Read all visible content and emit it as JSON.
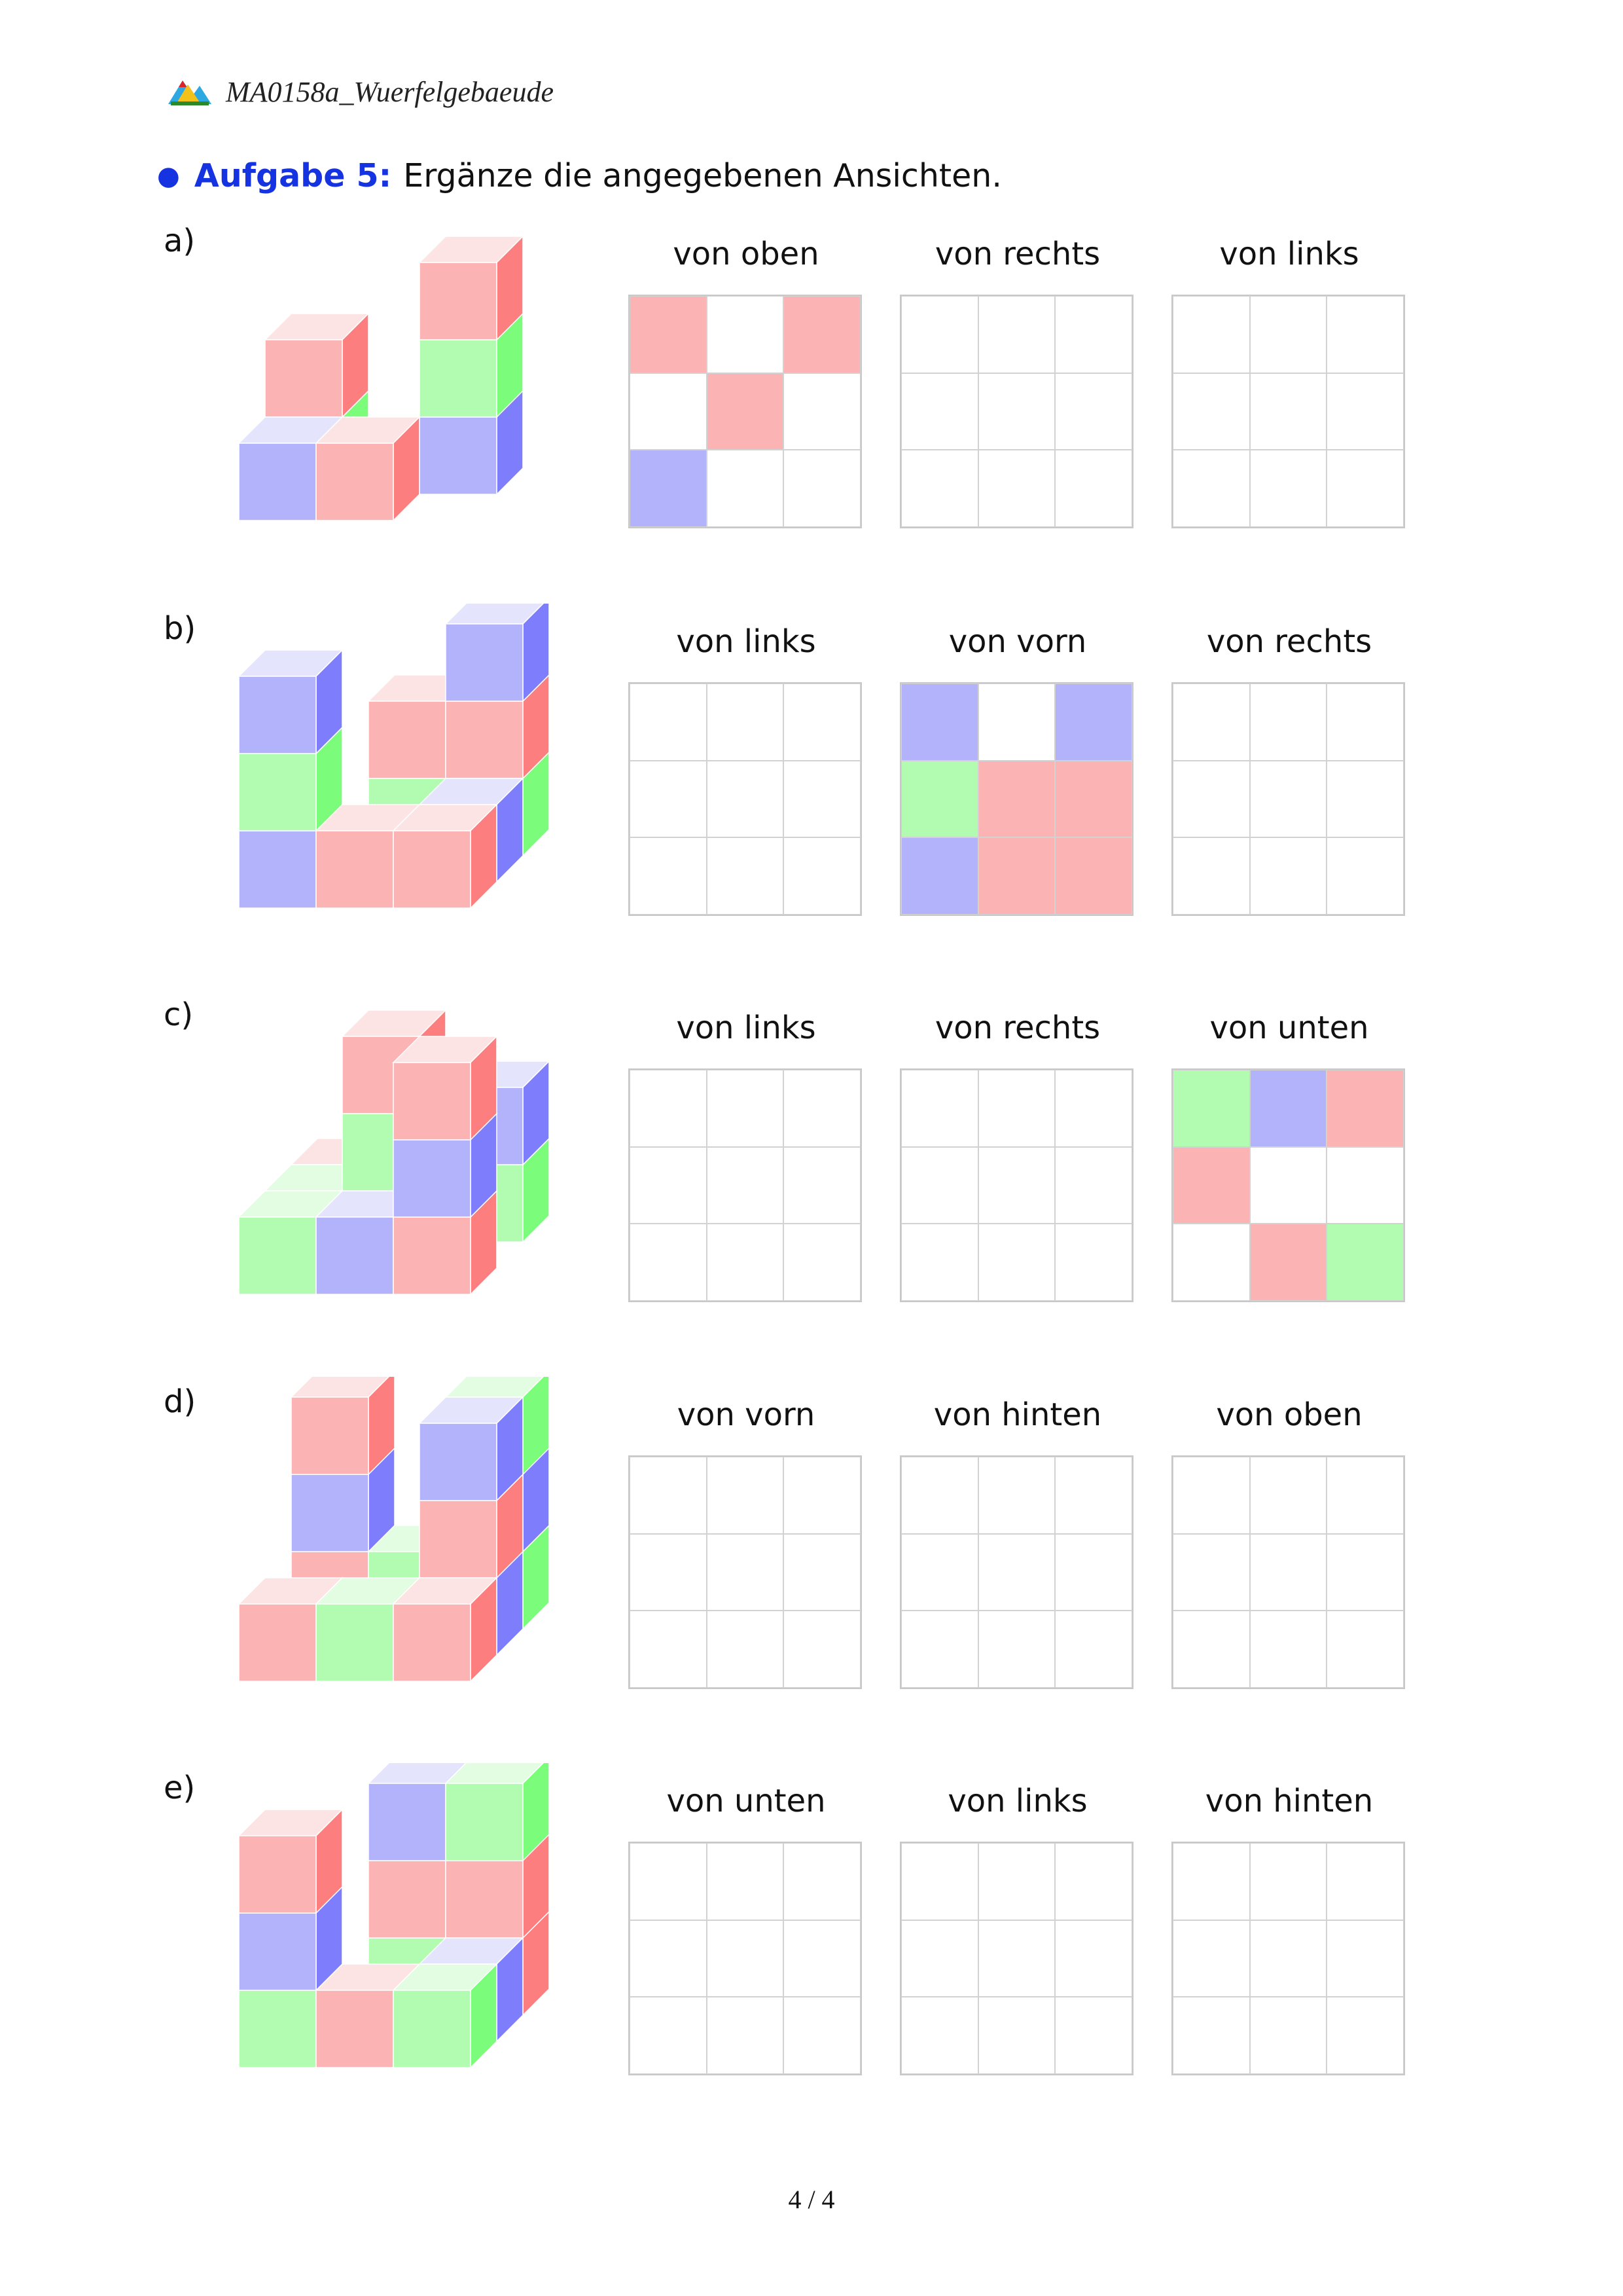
{
  "header": {
    "title": "MA0158a_Wuerfelgebaeude",
    "logo_icon": "mountain-logo-icon"
  },
  "task": {
    "bullet": "●",
    "label": "Aufgabe 5:",
    "text": "Ergänze die angegebenen Ansichten."
  },
  "colors": {
    "R": "#fcb3b3",
    "G": "#b1fcb1",
    "B": "#b3b3fc",
    "empty": "#ffffff"
  },
  "rows": [
    {
      "label": "a)",
      "views": [
        {
          "caption": "von oben",
          "cells": [
            "R",
            "",
            "R",
            "",
            "R",
            "",
            "B",
            "",
            ""
          ]
        },
        {
          "caption": "von rechts",
          "cells": [
            "",
            "",
            "",
            "",
            "",
            "",
            "",
            "",
            ""
          ]
        },
        {
          "caption": "von links",
          "cells": [
            "",
            "",
            "",
            "",
            "",
            "",
            "",
            "",
            ""
          ]
        }
      ]
    },
    {
      "label": "b)",
      "views": [
        {
          "caption": "von links",
          "cells": [
            "",
            "",
            "",
            "",
            "",
            "",
            "",
            "",
            ""
          ]
        },
        {
          "caption": "von vorn",
          "cells": [
            "B",
            "",
            "B",
            "G",
            "R",
            "R",
            "B",
            "R",
            "R"
          ]
        },
        {
          "caption": "von rechts",
          "cells": [
            "",
            "",
            "",
            "",
            "",
            "",
            "",
            "",
            ""
          ]
        }
      ]
    },
    {
      "label": "c)",
      "views": [
        {
          "caption": "von links",
          "cells": [
            "",
            "",
            "",
            "",
            "",
            "",
            "",
            "",
            ""
          ]
        },
        {
          "caption": "von rechts",
          "cells": [
            "",
            "",
            "",
            "",
            "",
            "",
            "",
            "",
            ""
          ]
        },
        {
          "caption": "von unten",
          "cells": [
            "G",
            "B",
            "R",
            "R",
            "",
            "",
            "",
            "R",
            "G"
          ]
        }
      ]
    },
    {
      "label": "d)",
      "views": [
        {
          "caption": "von vorn",
          "cells": [
            "",
            "",
            "",
            "",
            "",
            "",
            "",
            "",
            ""
          ]
        },
        {
          "caption": "von hinten",
          "cells": [
            "",
            "",
            "",
            "",
            "",
            "",
            "",
            "",
            ""
          ]
        },
        {
          "caption": "von oben",
          "cells": [
            "",
            "",
            "",
            "",
            "",
            "",
            "",
            "",
            ""
          ]
        }
      ]
    },
    {
      "label": "e)",
      "views": [
        {
          "caption": "von unten",
          "cells": [
            "",
            "",
            "",
            "",
            "",
            "",
            "",
            "",
            ""
          ]
        },
        {
          "caption": "von links",
          "cells": [
            "",
            "",
            "",
            "",
            "",
            "",
            "",
            "",
            ""
          ]
        },
        {
          "caption": "von hinten",
          "cells": [
            "",
            "",
            "",
            "",
            "",
            "",
            "",
            "",
            ""
          ]
        }
      ]
    }
  ],
  "page_number": "4 / 4"
}
